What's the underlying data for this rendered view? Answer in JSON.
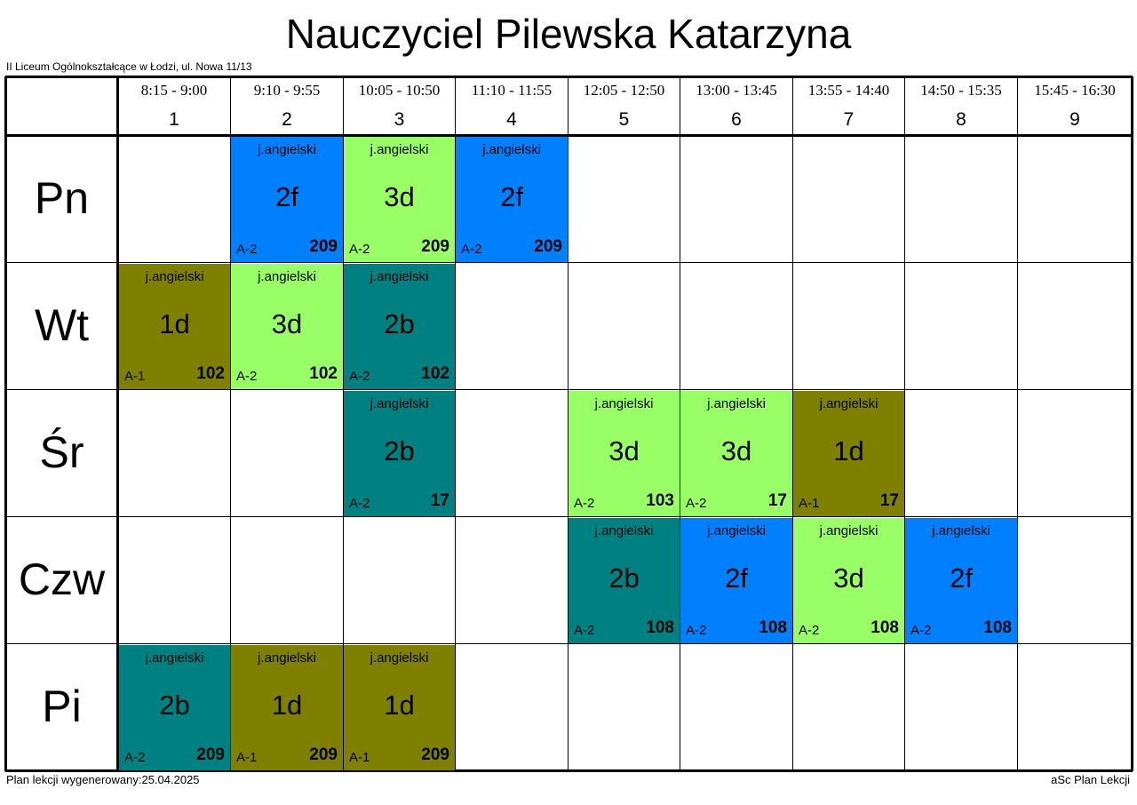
{
  "title": "Nauczyciel Pilewska Katarzyna",
  "school": "II Liceum Ogólnokształcące w Łodzi, ul. Nowa 11/13",
  "footer_left": "Plan lekcji wygenerowany:25.04.2025",
  "footer_right": "aSc Plan Lekcji",
  "periods": [
    {
      "num": "1",
      "time": "8:15 - 9:00"
    },
    {
      "num": "2",
      "time": "9:10 - 9:55"
    },
    {
      "num": "3",
      "time": "10:05 - 10:50"
    },
    {
      "num": "4",
      "time": "11:10 - 11:55"
    },
    {
      "num": "5",
      "time": "12:05 - 12:50"
    },
    {
      "num": "6",
      "time": "13:00 - 13:45"
    },
    {
      "num": "7",
      "time": "13:55 - 14:40"
    },
    {
      "num": "8",
      "time": "14:50 - 15:35"
    },
    {
      "num": "9",
      "time": "15:45 - 16:30"
    }
  ],
  "days": [
    "Pn",
    "Wt",
    "Śr",
    "Czw",
    "Pi"
  ],
  "class_colors": {
    "1d": "#808000",
    "2b": "#008080",
    "2f": "#0080ff",
    "3d": "#99ff66"
  },
  "lessons": [
    {
      "day": 0,
      "period": 2,
      "subject": "j.angielski",
      "class": "2f",
      "group": "A-2",
      "room": "209"
    },
    {
      "day": 0,
      "period": 3,
      "subject": "j.angielski",
      "class": "3d",
      "group": "A-2",
      "room": "209"
    },
    {
      "day": 0,
      "period": 4,
      "subject": "j.angielski",
      "class": "2f",
      "group": "A-2",
      "room": "209"
    },
    {
      "day": 1,
      "period": 1,
      "subject": "j.angielski",
      "class": "1d",
      "group": "A-1",
      "room": "102"
    },
    {
      "day": 1,
      "period": 2,
      "subject": "j.angielski",
      "class": "3d",
      "group": "A-2",
      "room": "102"
    },
    {
      "day": 1,
      "period": 3,
      "subject": "j.angielski",
      "class": "2b",
      "group": "A-2",
      "room": "102"
    },
    {
      "day": 2,
      "period": 3,
      "subject": "j.angielski",
      "class": "2b",
      "group": "A-2",
      "room": "17"
    },
    {
      "day": 2,
      "period": 5,
      "subject": "j.angielski",
      "class": "3d",
      "group": "A-2",
      "room": "103"
    },
    {
      "day": 2,
      "period": 6,
      "subject": "j.angielski",
      "class": "3d",
      "group": "A-2",
      "room": "17"
    },
    {
      "day": 2,
      "period": 7,
      "subject": "j.angielski",
      "class": "1d",
      "group": "A-1",
      "room": "17"
    },
    {
      "day": 3,
      "period": 5,
      "subject": "j.angielski",
      "class": "2b",
      "group": "A-2",
      "room": "108"
    },
    {
      "day": 3,
      "period": 6,
      "subject": "j.angielski",
      "class": "2f",
      "group": "A-2",
      "room": "108"
    },
    {
      "day": 3,
      "period": 7,
      "subject": "j.angielski",
      "class": "3d",
      "group": "A-2",
      "room": "108"
    },
    {
      "day": 3,
      "period": 8,
      "subject": "j.angielski",
      "class": "2f",
      "group": "A-2",
      "room": "108"
    },
    {
      "day": 4,
      "period": 1,
      "subject": "j.angielski",
      "class": "2b",
      "group": "A-2",
      "room": "209"
    },
    {
      "day": 4,
      "period": 2,
      "subject": "j.angielski",
      "class": "1d",
      "group": "A-1",
      "room": "209"
    },
    {
      "day": 4,
      "period": 3,
      "subject": "j.angielski",
      "class": "1d",
      "group": "A-1",
      "room": "209"
    }
  ]
}
